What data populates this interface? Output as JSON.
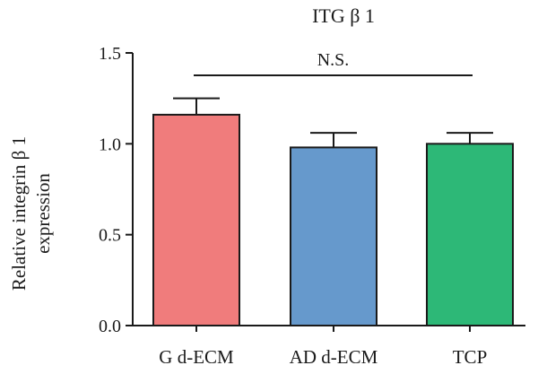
{
  "chart_data": {
    "type": "bar",
    "title": "ITG β 1",
    "ylabel_lines": [
      "Relative integrin β 1",
      "expression"
    ],
    "xlabel": "",
    "categories": [
      "G d-ECM",
      "AD d-ECM",
      "TCP"
    ],
    "values": [
      1.16,
      0.98,
      1.0
    ],
    "error_upper": [
      0.09,
      0.08,
      0.06
    ],
    "colors": [
      "#f07c7c",
      "#6699cc",
      "#2db877"
    ],
    "ylim": [
      0.0,
      1.5
    ],
    "yticks": [
      "0.0",
      "0.5",
      "1.0",
      "1.5"
    ],
    "grid": false,
    "annotation": {
      "label": "N.S.",
      "from_category": 0,
      "to_category": 2
    }
  }
}
